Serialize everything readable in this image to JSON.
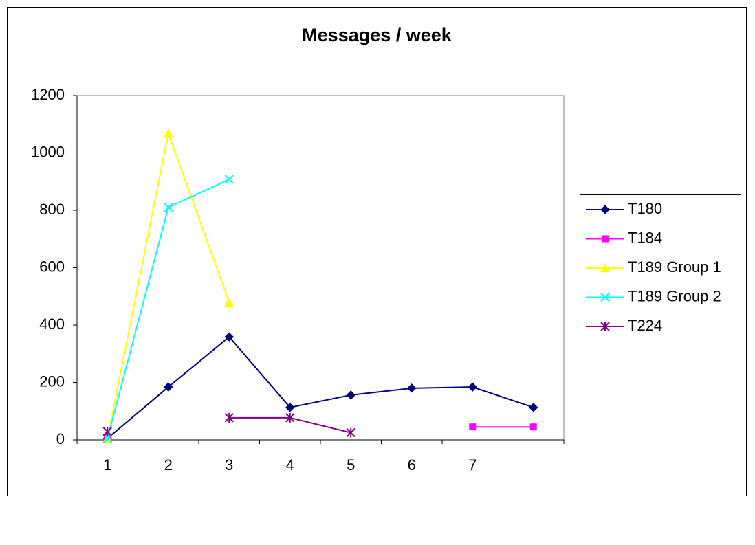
{
  "chart_data": {
    "type": "line",
    "title": "Messages / week",
    "categories": [
      "1",
      "2",
      "3",
      "4",
      "5",
      "6",
      "7",
      null
    ],
    "series": [
      {
        "name": "T180",
        "color": "#000080",
        "marker": "diamond",
        "values": [
          5,
          184,
          359,
          113,
          156,
          180,
          184,
          113
        ]
      },
      {
        "name": "T184",
        "color": "#ff00ff",
        "marker": "square",
        "values": [
          10,
          null,
          null,
          null,
          null,
          null,
          45,
          45
        ]
      },
      {
        "name": "T189 Group 1",
        "color": "#ffff00",
        "marker": "triangle",
        "values": [
          5,
          1068,
          479,
          null,
          null,
          null,
          null,
          null
        ]
      },
      {
        "name": "T189 Group 2",
        "color": "#00ffff",
        "marker": "x",
        "values": [
          5,
          810,
          908,
          null,
          null,
          null,
          null,
          null
        ]
      },
      {
        "name": "T224",
        "color": "#800080",
        "marker": "star",
        "values": [
          29,
          null,
          77,
          77,
          25,
          null,
          null,
          null
        ]
      }
    ],
    "ylim": [
      0,
      1200
    ],
    "yticks": [
      0,
      200,
      400,
      600,
      800,
      1000,
      1200
    ],
    "grid": false,
    "legend": "right"
  }
}
